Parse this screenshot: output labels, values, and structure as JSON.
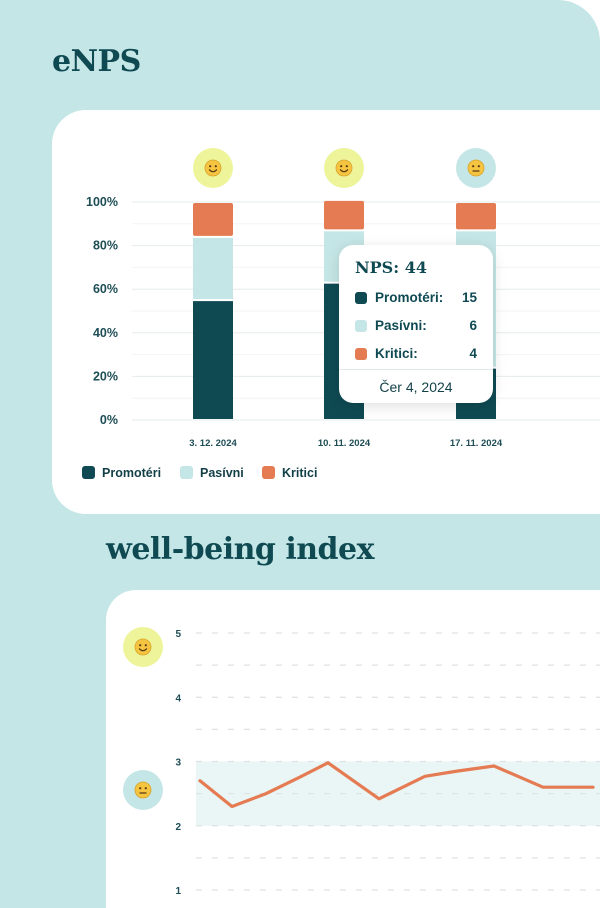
{
  "enps_section": {
    "title": "eNPS",
    "legend": [
      "Promotéri",
      "Pasívni",
      "Kritici"
    ],
    "colors": {
      "promoters": "#0f4a53",
      "passives": "#c5e6e6",
      "detractors": "#e57b52"
    },
    "faces": [
      "slightly-smiling-face-icon",
      "smiling-face-icon",
      "neutral-face-icon"
    ],
    "tooltip": {
      "title": "NPS: 44",
      "rows": [
        {
          "label": "Promotéri:",
          "value": "15"
        },
        {
          "label": "Pasívni:",
          "value": "6"
        },
        {
          "label": "Kritici:",
          "value": "4"
        }
      ],
      "date": "Čer 4, 2024"
    }
  },
  "wellbeing_section": {
    "title": "well-being index",
    "faces": [
      "smiling-face-icon",
      "neutral-face-icon"
    ],
    "line_color": "#e57b52",
    "band_color": "#eaf6f5"
  },
  "chart_data": [
    {
      "type": "bar",
      "stacked": true,
      "categories": [
        "3. 12. 2024",
        "10. 11. 2024",
        "17. 11. 2024"
      ],
      "y_ticks": [
        "0%",
        "20%",
        "40%",
        "60%",
        "80%",
        "100%"
      ],
      "ylim": [
        0,
        100
      ],
      "series": [
        {
          "name": "Promotéri",
          "values": [
            55,
            63,
            24
          ]
        },
        {
          "name": "Pasívni",
          "values": [
            29,
            24,
            63
          ]
        },
        {
          "name": "Kritici",
          "values": [
            16,
            14,
            13
          ]
        }
      ],
      "grid": true,
      "legend_position": "bottom-left"
    },
    {
      "type": "line",
      "y_ticks": [
        "1",
        "2",
        "3",
        "4",
        "5"
      ],
      "ylim": [
        1,
        5
      ],
      "highlight_band": [
        2,
        3
      ],
      "series": [
        {
          "values": [
            2.7,
            2.3,
            2.5,
            2.75,
            2.98,
            2.42,
            2.77,
            2.85,
            2.93,
            2.6,
            2.6,
            2.6
          ]
        }
      ],
      "grid": true
    }
  ]
}
